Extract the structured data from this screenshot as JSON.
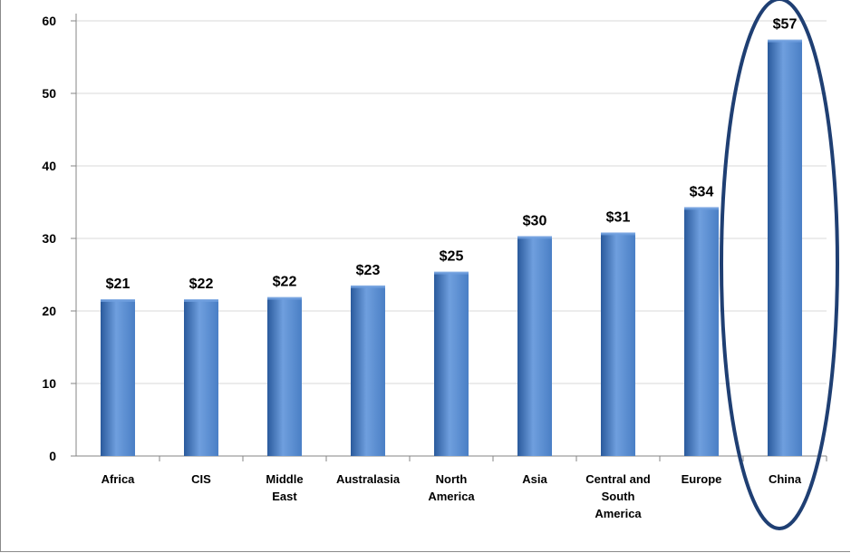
{
  "chart_data": {
    "type": "bar",
    "categories": [
      "Africa",
      "CIS",
      "Middle East",
      "Australasia",
      "North America",
      "Asia",
      "Central and South America",
      "Europe",
      "China"
    ],
    "values": [
      21.5,
      21.5,
      21.8,
      23.4,
      25.3,
      30.2,
      30.7,
      34.2,
      57.3
    ],
    "data_labels": [
      "$21",
      "$22",
      "$22",
      "$23",
      "$25",
      "$30",
      "$31",
      "$34",
      "$57"
    ],
    "category_label_lines": [
      [
        "Africa"
      ],
      [
        "CIS"
      ],
      [
        "Middle",
        "East"
      ],
      [
        "Australasia"
      ],
      [
        "North",
        "America"
      ],
      [
        "Asia"
      ],
      [
        "Central and",
        "South",
        "America"
      ],
      [
        "Europe"
      ],
      [
        "China"
      ]
    ],
    "yticks": [
      "0",
      "10",
      "20",
      "30",
      "40",
      "50",
      "60"
    ],
    "ylim": [
      0,
      60
    ],
    "grid": true,
    "highlight_category": "China",
    "colors": {
      "bar_light": "#6f9fde",
      "bar_mid": "#4a7fc5",
      "bar_dark": "#2a5a9c",
      "gridline": "#d9d9d9",
      "axis": "#868686",
      "ellipse": "#1f3f73"
    }
  }
}
